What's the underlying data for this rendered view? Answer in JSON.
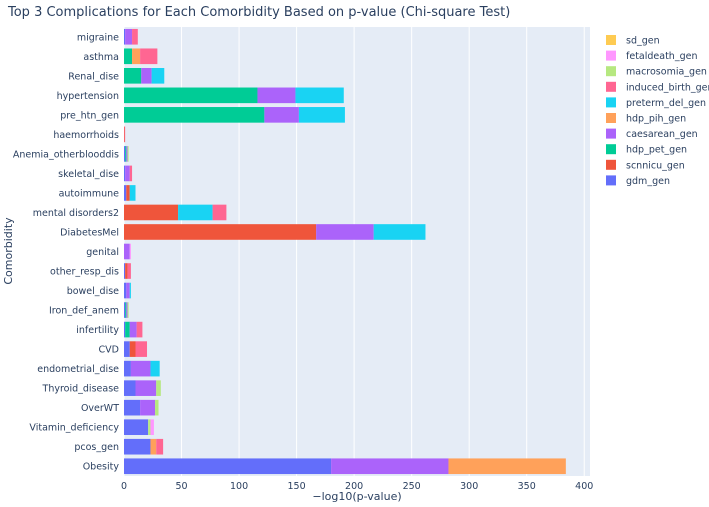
{
  "chart_data": {
    "type": "bar",
    "orientation": "horizontal",
    "barmode": "stack",
    "title": "Top 3 Complications for Each Comorbidity Based on p-value (Chi-square Test)",
    "xlabel": "−log10(p-value)",
    "ylabel": "Comorbidity",
    "xlim": [
      0,
      405
    ],
    "xticks": [
      0,
      50,
      100,
      150,
      200,
      250,
      300,
      350,
      400
    ],
    "grid": true,
    "legend_position": "right",
    "categories": [
      "migraine",
      "asthma",
      "Renal_dise",
      "hypertension",
      "pre_htn_gen",
      "haemorrhoids",
      "Anemia_otherblooddis",
      "skeletal_dise",
      "autoimmune",
      "mental disorders2",
      "DiabetesMel",
      "genital",
      "other_resp_dis",
      "bowel_dise",
      "Iron_def_anem",
      "infertility",
      "CVD",
      "endometrial_dise",
      "Thyroid_disease",
      "OverWT",
      "Vitamin_deficiency",
      "pcos_gen",
      "Obesity"
    ],
    "series": [
      {
        "name": "gdm_gen",
        "color": "#636efa",
        "values": [
          1,
          0,
          0,
          0,
          0,
          0,
          1,
          1,
          2,
          0,
          0,
          0,
          1,
          2,
          1,
          1,
          5,
          6,
          10,
          14,
          21,
          23,
          180
        ]
      },
      {
        "name": "scnnicu_gen",
        "color": "#ef553b",
        "values": [
          0,
          0,
          0,
          0,
          0,
          0.5,
          0,
          0,
          3,
          47,
          167,
          0,
          2,
          0,
          0,
          0,
          5,
          0,
          0,
          0,
          0,
          0,
          0
        ]
      },
      {
        "name": "hdp_pet_gen",
        "color": "#00cc96",
        "values": [
          0,
          7,
          15,
          116,
          122,
          0,
          1,
          0,
          0,
          0,
          0,
          0,
          0,
          0,
          1,
          4,
          0,
          0,
          0,
          0,
          0,
          0,
          0
        ]
      },
      {
        "name": "caesarean_gen",
        "color": "#ab63fa",
        "values": [
          6,
          0,
          9,
          33,
          30,
          0,
          1,
          4,
          0,
          0,
          50,
          5,
          0,
          3,
          1,
          6,
          0,
          17,
          18,
          13,
          0,
          0,
          102
        ]
      },
      {
        "name": "hdp_pih_gen",
        "color": "#ffa15a",
        "values": [
          0,
          7,
          0,
          0,
          0,
          0,
          0,
          0,
          0,
          0,
          0,
          0,
          0,
          0,
          0,
          0,
          0,
          0,
          0,
          0,
          0,
          5,
          102
        ]
      },
      {
        "name": "preterm_del_gen",
        "color": "#19d3f3",
        "values": [
          0,
          0,
          11,
          42,
          40,
          0,
          0,
          0,
          5,
          30,
          45,
          0,
          0,
          1,
          0,
          0,
          0,
          8,
          0,
          0,
          0,
          0,
          0
        ]
      },
      {
        "name": "induced_birth_gen",
        "color": "#ff6692",
        "values": [
          5,
          15,
          0,
          0,
          0,
          0.5,
          0,
          2,
          0,
          12,
          0,
          0,
          3,
          0,
          0,
          5,
          10,
          0,
          0,
          0,
          0,
          6,
          0
        ]
      },
      {
        "name": "macrosomia_gen",
        "color": "#b6e880",
        "values": [
          0,
          0,
          0,
          0,
          0,
          0,
          1,
          0,
          0,
          0,
          0,
          0,
          0,
          0,
          1,
          0,
          0,
          0,
          4,
          3,
          2,
          0,
          0
        ]
      },
      {
        "name": "fetaldeath_gen",
        "color": "#ff97ff",
        "values": [
          0,
          0,
          0,
          0,
          0,
          0,
          0,
          0,
          0,
          0,
          0,
          1,
          0,
          0,
          0,
          0,
          0,
          0,
          0,
          0,
          3,
          0,
          0
        ]
      },
      {
        "name": "sd_gen",
        "color": "#fecb52",
        "values": [
          0,
          0,
          0,
          0,
          0,
          0,
          0,
          0,
          0,
          0,
          0,
          0,
          0,
          0,
          0,
          0,
          0,
          0,
          0,
          0,
          0,
          0,
          0
        ]
      }
    ],
    "legend_order": [
      "sd_gen",
      "fetaldeath_gen",
      "macrosomia_gen",
      "induced_birth_gen",
      "preterm_del_gen",
      "hdp_pih_gen",
      "caesarean_gen",
      "hdp_pet_gen",
      "scnnicu_gen",
      "gdm_gen"
    ]
  },
  "colors": {
    "plot_background": "#e5ecf6",
    "grid": "#ffffff",
    "text": "#2a3f5f"
  }
}
